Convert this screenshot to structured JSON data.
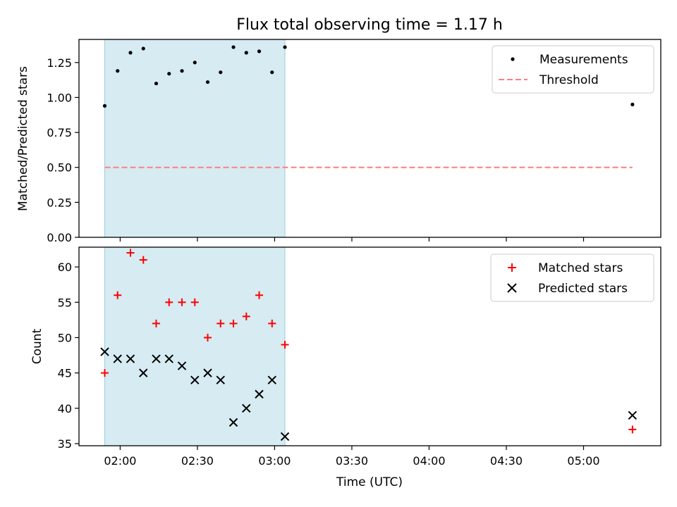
{
  "colors": {
    "span": "#add8e6",
    "span_edge": "#9ccfdc",
    "measurement": "#000000",
    "threshold": "#ff7f7f",
    "matched": "#ff0000",
    "predicted": "#000000",
    "axes": "#000000"
  },
  "chart_data": [
    {
      "type": "scatter",
      "title": "Flux total observing time = 1.17 h",
      "xlabel": "",
      "ylabel": "Matched/Predicted stars",
      "xlim_minutes_utc": [
        104,
        330
      ],
      "ylim": [
        0.0,
        1.4
      ],
      "y_ticks": [
        0.0,
        0.25,
        0.5,
        0.75,
        1.0,
        1.25
      ],
      "y_tick_labels": [
        "0.00",
        "0.25",
        "0.50",
        "0.75",
        "1.00",
        "1.25"
      ],
      "x_ticks_minutes_utc": [
        120,
        150,
        180,
        210,
        240,
        270,
        300
      ],
      "x_tick_labels": [
        "",
        "",
        "",
        "",
        "",
        "",
        ""
      ],
      "span_minutes_utc": [
        114,
        184
      ],
      "legend": {
        "placement": "upper right",
        "entries": [
          "Measurements",
          "Threshold"
        ]
      },
      "series": [
        {
          "name": "Measurements",
          "marker": "dot",
          "x_minutes_utc": [
            114,
            119,
            124,
            129,
            134,
            139,
            144,
            149,
            154,
            159,
            164,
            169,
            174,
            179,
            184,
            319
          ],
          "y": [
            0.94,
            1.19,
            1.32,
            1.35,
            1.1,
            1.17,
            1.19,
            1.25,
            1.11,
            1.18,
            1.36,
            1.32,
            1.33,
            1.18,
            1.36,
            0.95
          ]
        },
        {
          "name": "Threshold",
          "style": "dashed",
          "x_minutes_utc": [
            114,
            319
          ],
          "y": [
            0.5,
            0.5
          ]
        }
      ]
    },
    {
      "type": "scatter",
      "title": "",
      "xlabel": "Time (UTC)",
      "ylabel": "Count",
      "xlim_minutes_utc": [
        104,
        330
      ],
      "ylim": [
        34.7,
        62.8
      ],
      "y_ticks": [
        35,
        40,
        45,
        50,
        55,
        60
      ],
      "y_tick_labels": [
        "35",
        "40",
        "45",
        "50",
        "55",
        "60"
      ],
      "x_ticks_minutes_utc": [
        120,
        150,
        180,
        210,
        240,
        270,
        300
      ],
      "x_tick_labels": [
        "02:00",
        "02:30",
        "03:00",
        "03:30",
        "04:00",
        "04:30",
        "05:00"
      ],
      "span_minutes_utc": [
        114,
        184
      ],
      "legend": {
        "placement": "upper right",
        "entries": [
          "Matched stars",
          "Predicted stars"
        ]
      },
      "series": [
        {
          "name": "Matched stars",
          "marker": "plus",
          "x_minutes_utc": [
            114,
            119,
            124,
            129,
            134,
            139,
            144,
            149,
            154,
            159,
            164,
            169,
            174,
            179,
            184,
            319
          ],
          "y": [
            45,
            56,
            62,
            61,
            52,
            55,
            55,
            55,
            50,
            52,
            52,
            53,
            56,
            52,
            49,
            37
          ]
        },
        {
          "name": "Predicted stars",
          "marker": "x",
          "x_minutes_utc": [
            114,
            119,
            124,
            129,
            134,
            139,
            144,
            149,
            154,
            159,
            164,
            169,
            174,
            179,
            184,
            319
          ],
          "y": [
            48,
            47,
            47,
            45,
            47,
            47,
            46,
            44,
            45,
            44,
            38,
            40,
            42,
            44,
            36,
            39
          ]
        }
      ]
    }
  ]
}
